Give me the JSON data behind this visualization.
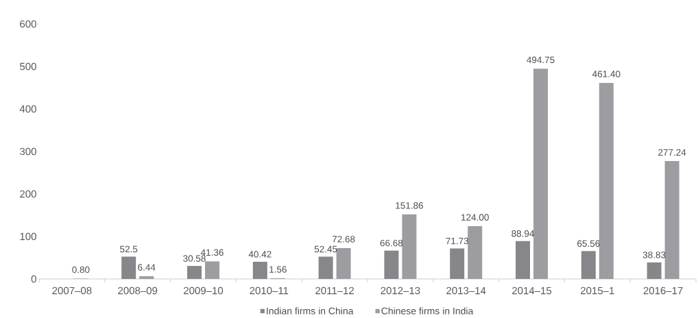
{
  "chart_data": {
    "type": "bar",
    "categories": [
      "2007–08",
      "2008–09",
      "2009–10",
      "2010–11",
      "2011–12",
      "2012–13",
      "2013–14",
      "2014–15",
      "2015–1",
      "2016–17"
    ],
    "series": [
      {
        "name": "Indian firms in China",
        "color": "#87878b",
        "values": [
          null,
          52.5,
          30.58,
          40.42,
          52.45,
          66.68,
          71.73,
          88.94,
          65.56,
          38.83
        ],
        "value_labels": [
          null,
          "52.5",
          "30.58",
          "40.42",
          "52.45",
          "66.68",
          "71.73",
          "88.94",
          "65.56",
          "38.83"
        ]
      },
      {
        "name": "Chinese firms in India",
        "color": "#9d9da1",
        "values": [
          0.8,
          6.44,
          41.36,
          1.56,
          72.68,
          151.86,
          124.0,
          494.75,
          461.4,
          277.24
        ],
        "value_labels": [
          "0.80",
          "6.44",
          "41.36",
          "1.56",
          "72.68",
          "151.86",
          "124.00",
          "494.75",
          "461.40",
          "277.24"
        ]
      }
    ],
    "ylim": [
      0,
      600
    ],
    "yticks": [
      0,
      100,
      200,
      300,
      400,
      500,
      600
    ],
    "legend": "bottom"
  }
}
